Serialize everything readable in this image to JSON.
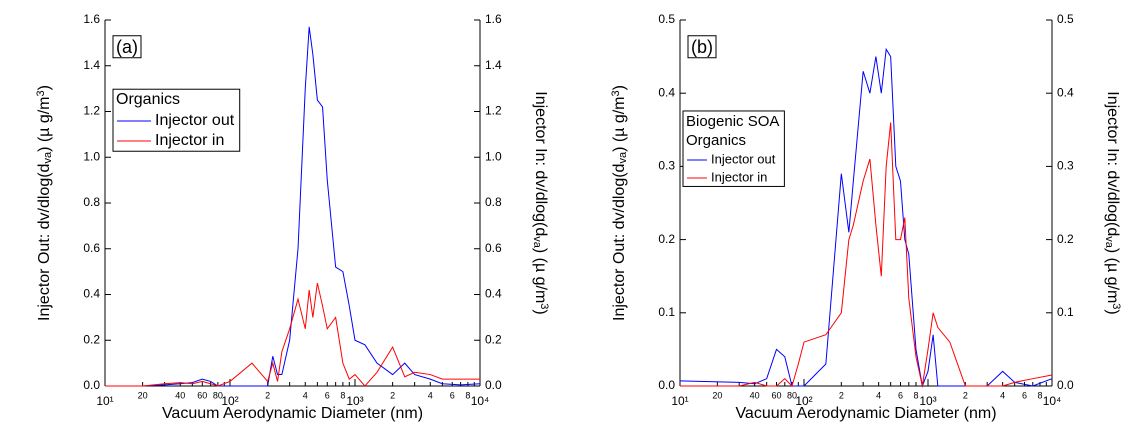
{
  "chart_data": [
    {
      "type": "line",
      "panel_label": "(a)",
      "xlabel": "Vacuum Aerodynamic Diameter (nm)",
      "ylabel": [
        "Injector Out: dv/dlog(d",
        "va",
        ") (µ g/m",
        "3",
        ")"
      ],
      "y2label": [
        "Injector In: dv/dlog(d",
        "va",
        ") (µ g/m",
        "3",
        ")"
      ],
      "xscale": "log",
      "xlim": [
        10,
        10000
      ],
      "xticks": [
        {
          "value": 10,
          "label": "10¹"
        },
        20,
        40,
        60,
        80,
        {
          "value": 100,
          "label": "10²"
        },
        {
          "value": 200,
          "label": "2"
        },
        {
          "value": 400,
          "label": "4"
        },
        {
          "value": 600,
          "label": "6"
        },
        {
          "value": 800,
          "label": "8"
        },
        {
          "value": 1000,
          "label": "10³"
        },
        {
          "value": 2000,
          "label": "2"
        },
        {
          "value": 4000,
          "label": "4"
        },
        {
          "value": 6000,
          "label": "6"
        },
        {
          "value": 8000,
          "label": "8"
        },
        {
          "value": 10000,
          "label": "10⁴"
        }
      ],
      "xminor_ticks": [
        30,
        50,
        70,
        90,
        300,
        500,
        700,
        900,
        3000,
        5000,
        7000,
        9000
      ],
      "ylim": [
        0,
        1.6
      ],
      "yticks": [
        {
          "value": 0,
          "label": "0.0"
        },
        0.2,
        0.4,
        0.6,
        0.8,
        {
          "value": 1,
          "label": "1.0"
        },
        1.2,
        1.4,
        1.6
      ],
      "y2lim": [
        0,
        1.6
      ],
      "y2ticks": [
        {
          "value": 0,
          "label": "0.0"
        },
        0.2,
        0.4,
        0.6,
        0.8,
        {
          "value": 1,
          "label": "1.0"
        },
        1.2,
        1.4,
        1.6
      ],
      "legend_title": [
        "Organics"
      ],
      "legend": "upper left",
      "x": [
        10,
        20,
        30,
        40,
        50,
        60,
        70,
        80,
        100,
        150,
        200,
        220,
        240,
        260,
        300,
        350,
        400,
        430,
        460,
        500,
        550,
        600,
        700,
        800,
        900,
        1000,
        1200,
        1500,
        2000,
        2500,
        3000,
        4000,
        5000,
        7000,
        10000
      ],
      "series": [
        {
          "name": "Injector out",
          "color": "#0000ff",
          "values": [
            0,
            0,
            0.005,
            0.01,
            0.015,
            0.03,
            0.02,
            0,
            0,
            0,
            0,
            0.13,
            0.05,
            0.05,
            0.2,
            0.6,
            1.3,
            1.57,
            1.45,
            1.25,
            1.22,
            0.9,
            0.52,
            0.5,
            0.35,
            0.2,
            0.18,
            0.1,
            0.05,
            0.1,
            0.05,
            0.03,
            0.01,
            0.005,
            0.01
          ]
        },
        {
          "name": "Injector in",
          "color": "#ff0000",
          "axis": "y2",
          "values": [
            0,
            0,
            0.01,
            0.015,
            0.01,
            0.02,
            0.01,
            0,
            0.02,
            0.1,
            0.02,
            0.1,
            0.02,
            0.15,
            0.25,
            0.38,
            0.25,
            0.42,
            0.3,
            0.45,
            0.35,
            0.25,
            0.3,
            0.1,
            0.03,
            0.05,
            0,
            0.06,
            0.17,
            0.04,
            0.06,
            0.05,
            0.03,
            0.03,
            0.03
          ]
        }
      ]
    },
    {
      "type": "line",
      "panel_label": "(b)",
      "xlabel": "Vacuum Aerodynamic Diameter (nm)",
      "ylabel": [
        "Injector Out: dv/dlog(d",
        "va",
        ") (µ g/m",
        "3",
        ")"
      ],
      "y2label": [
        "Injector In: dv/dlog(d",
        "va",
        ") (µ g/m",
        "3",
        ")"
      ],
      "xscale": "log",
      "xlim": [
        10,
        10000
      ],
      "xticks": [
        {
          "value": 10,
          "label": "10¹"
        },
        20,
        40,
        60,
        80,
        {
          "value": 100,
          "label": "10²"
        },
        {
          "value": 200,
          "label": "2"
        },
        {
          "value": 400,
          "label": "4"
        },
        {
          "value": 600,
          "label": "6"
        },
        {
          "value": 800,
          "label": "8"
        },
        {
          "value": 1000,
          "label": "10³"
        },
        {
          "value": 2000,
          "label": "2"
        },
        {
          "value": 4000,
          "label": "4"
        },
        {
          "value": 6000,
          "label": "6"
        },
        {
          "value": 8000,
          "label": "8"
        },
        {
          "value": 10000,
          "label": "10⁴"
        }
      ],
      "xminor_ticks": [
        30,
        50,
        70,
        90,
        300,
        500,
        700,
        900,
        3000,
        5000,
        7000,
        9000
      ],
      "ylim": [
        0,
        0.5
      ],
      "yticks": [
        {
          "value": 0,
          "label": "0.0"
        },
        0.1,
        0.2,
        0.3,
        0.4,
        0.5
      ],
      "y2lim": [
        0,
        0.5
      ],
      "y2ticks": [
        {
          "value": 0,
          "label": "0.0"
        },
        0.1,
        0.2,
        0.3,
        0.4,
        0.5
      ],
      "legend_title": [
        "Biogenic SOA",
        "Organics"
      ],
      "legend": "upper left",
      "x": [
        10,
        30,
        40,
        50,
        60,
        70,
        80,
        90,
        100,
        150,
        200,
        230,
        250,
        300,
        340,
        380,
        420,
        460,
        500,
        550,
        600,
        650,
        700,
        800,
        900,
        1000,
        1100,
        1200,
        1500,
        2000,
        3000,
        4000,
        5000,
        7000,
        10000
      ],
      "series": [
        {
          "name": "Injector out",
          "color": "#0000ff",
          "values": [
            0.007,
            0.005,
            0.003,
            0.01,
            0.05,
            0.04,
            0,
            0,
            0,
            0.03,
            0.29,
            0.21,
            0.28,
            0.43,
            0.4,
            0.45,
            0.4,
            0.46,
            0.45,
            0.3,
            0.28,
            0.2,
            0.18,
            0.05,
            0,
            0.02,
            0.07,
            0,
            0,
            0,
            0,
            0.02,
            0.005,
            0,
            0.01
          ]
        },
        {
          "name": "Injector in",
          "color": "#ff0000",
          "axis": "y2",
          "values": [
            0,
            0,
            0.005,
            0,
            0,
            0.01,
            0,
            0.03,
            0.06,
            0.07,
            0.1,
            0.2,
            0.22,
            0.28,
            0.31,
            0.22,
            0.15,
            0.3,
            0.36,
            0.2,
            0.2,
            0.23,
            0.12,
            0.04,
            0,
            0.05,
            0.1,
            0.08,
            0.06,
            0,
            0,
            0,
            0.005,
            0.01,
            0.015
          ]
        }
      ]
    }
  ]
}
